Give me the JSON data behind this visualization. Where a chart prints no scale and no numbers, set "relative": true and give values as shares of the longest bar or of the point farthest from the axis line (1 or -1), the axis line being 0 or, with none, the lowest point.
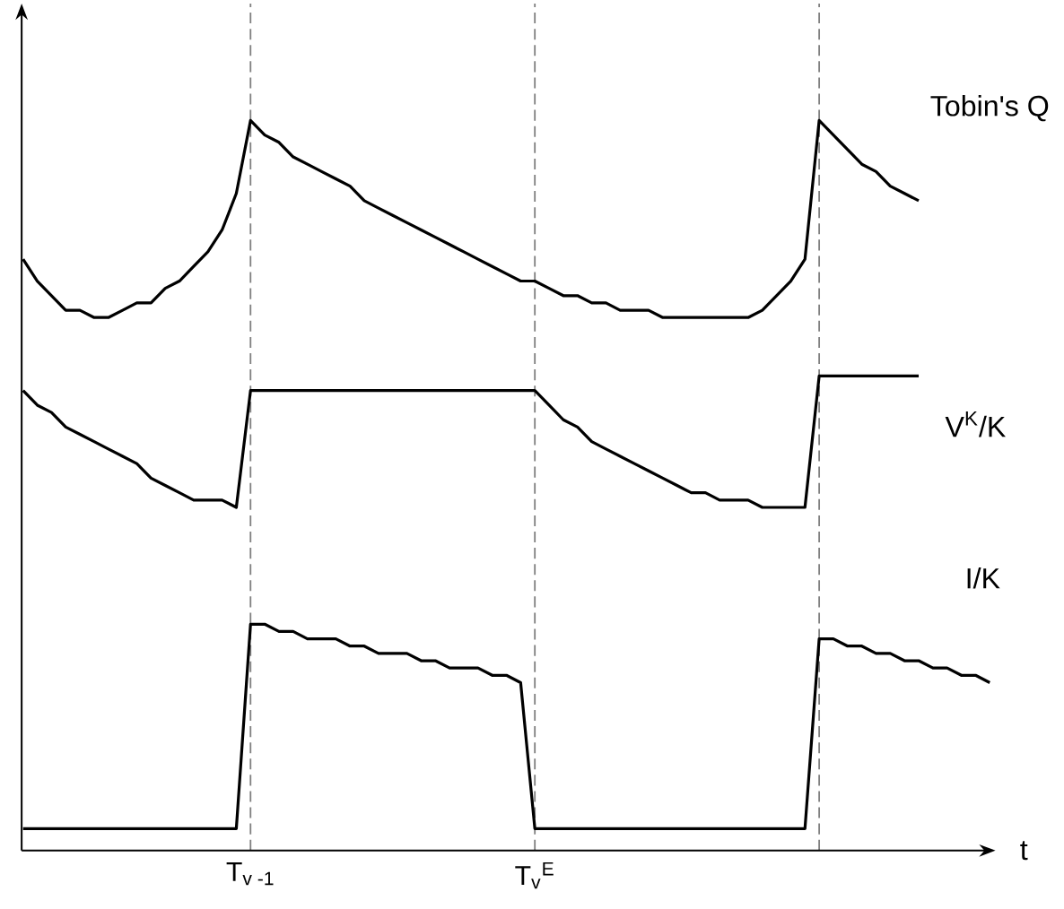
{
  "chart_data": {
    "type": "line",
    "relative": true,
    "xlabel": "t",
    "categories": [
      null,
      null,
      null,
      null,
      null,
      null,
      null,
      null,
      null,
      null,
      null,
      null,
      null,
      null,
      null,
      null,
      "T$_{v -1}$",
      null,
      null,
      null,
      null,
      null,
      null,
      null,
      null,
      null,
      null,
      null,
      null,
      null,
      null,
      null,
      null,
      null,
      null,
      null,
      "T$_{v}$$^{E}$",
      null,
      null,
      null,
      null,
      null,
      null,
      null,
      null,
      null,
      null,
      null,
      null,
      null,
      null,
      null,
      null,
      null,
      null,
      null,
      null,
      null,
      null,
      null,
      null,
      null,
      null,
      null,
      null,
      null,
      null,
      null,
      null
    ],
    "marker": "none",
    "line_style": "solid",
    "series": [
      {
        "name": "Tobin's Q",
        "color": "#000000",
        "values": [
          0.81,
          0.78,
          0.76,
          0.74,
          0.74,
          0.73,
          0.73,
          0.74,
          0.75,
          0.75,
          0.77,
          0.78,
          0.8,
          0.82,
          0.85,
          0.9,
          1.0,
          0.98,
          0.97,
          0.95,
          0.94,
          0.93,
          0.92,
          0.91,
          0.89,
          0.88,
          0.87,
          0.86,
          0.85,
          0.84,
          0.83,
          0.82,
          0.81,
          0.8,
          0.79,
          0.78,
          0.78,
          0.77,
          0.76,
          0.76,
          0.75,
          0.75,
          0.74,
          0.74,
          0.74,
          0.73,
          0.73,
          0.73,
          0.73,
          0.73,
          0.73,
          0.73,
          0.74,
          0.76,
          0.78,
          0.81,
          1.0,
          0.98,
          0.96,
          0.94,
          0.93,
          0.91,
          0.9,
          0.89,
          null,
          null,
          null,
          null,
          null
        ]
      },
      {
        "name": "V$^{K}$/K",
        "color": "#000000",
        "values": [
          0.63,
          0.61,
          0.6,
          0.58,
          0.57,
          0.56,
          0.55,
          0.54,
          0.53,
          0.51,
          0.5,
          0.49,
          0.48,
          0.48,
          0.48,
          0.47,
          0.63,
          0.63,
          0.63,
          0.63,
          0.63,
          0.63,
          0.63,
          0.63,
          0.63,
          0.63,
          0.63,
          0.63,
          0.63,
          0.63,
          0.63,
          0.63,
          0.63,
          0.63,
          0.63,
          0.63,
          0.63,
          0.61,
          0.59,
          0.58,
          0.56,
          0.55,
          0.54,
          0.53,
          0.52,
          0.51,
          0.5,
          0.49,
          0.49,
          0.48,
          0.48,
          0.48,
          0.47,
          0.47,
          0.47,
          0.47,
          0.65,
          0.65,
          0.65,
          0.65,
          0.65,
          0.65,
          0.65,
          0.65,
          null,
          null,
          null,
          null,
          null
        ]
      },
      {
        "name": "I/K",
        "color": "#000000",
        "values": [
          0.03,
          0.03,
          0.03,
          0.03,
          0.03,
          0.03,
          0.03,
          0.03,
          0.03,
          0.03,
          0.03,
          0.03,
          0.03,
          0.03,
          0.03,
          0.03,
          0.31,
          0.31,
          0.3,
          0.3,
          0.29,
          0.29,
          0.29,
          0.28,
          0.28,
          0.27,
          0.27,
          0.27,
          0.26,
          0.26,
          0.25,
          0.25,
          0.25,
          0.24,
          0.24,
          0.23,
          0.03,
          0.03,
          0.03,
          0.03,
          0.03,
          0.03,
          0.03,
          0.03,
          0.03,
          0.03,
          0.03,
          0.03,
          0.03,
          0.03,
          0.03,
          0.03,
          0.03,
          0.03,
          0.03,
          0.03,
          0.29,
          0.29,
          0.28,
          0.28,
          0.27,
          0.27,
          0.26,
          0.26,
          0.25,
          0.25,
          0.24,
          0.24,
          0.23
        ]
      }
    ],
    "grid": "x"
  }
}
